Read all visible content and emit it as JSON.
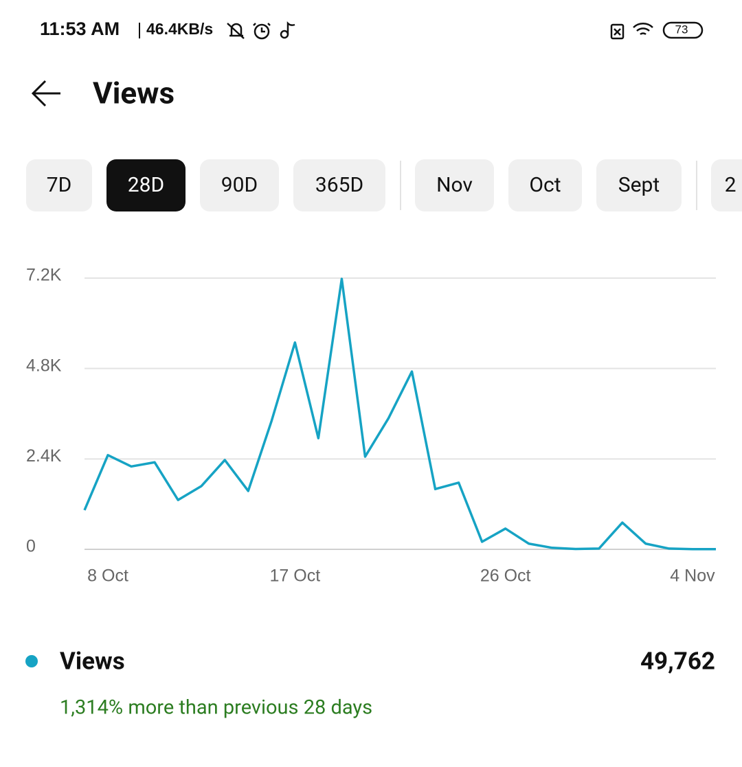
{
  "status_bar": {
    "time": "11:53 AM",
    "speed": "46.4KB/s",
    "battery": "73"
  },
  "header": {
    "title": "Views"
  },
  "tabs": [
    {
      "label": "7D",
      "selected": false
    },
    {
      "label": "28D",
      "selected": true
    },
    {
      "label": "90D",
      "selected": false
    },
    {
      "label": "365D",
      "selected": false
    },
    {
      "label": "Nov",
      "selected": false
    },
    {
      "label": "Oct",
      "selected": false
    },
    {
      "label": "Sept",
      "selected": false
    },
    {
      "label": "2",
      "selected": false
    }
  ],
  "chart_data": {
    "type": "line",
    "categories": [
      null,
      "8 Oct",
      null,
      null,
      null,
      null,
      null,
      null,
      null,
      "17 Oct",
      null,
      null,
      null,
      null,
      null,
      null,
      null,
      null,
      "26 Oct",
      null,
      null,
      null,
      null,
      null,
      null,
      null,
      "4 Nov",
      null
    ],
    "series": [
      {
        "name": "Views",
        "color": "#16a3c4",
        "values": [
          1040,
          2500,
          2200,
          2310,
          1310,
          1680,
          2370,
          1550,
          3410,
          5490,
          2950,
          7180,
          2460,
          3480,
          4720,
          1600,
          1770,
          200,
          550,
          150,
          40,
          10,
          20,
          710,
          150,
          20,
          5,
          5
        ]
      }
    ],
    "ylim": [
      0,
      7200
    ],
    "yticks": [
      0,
      {
        "value": 2400,
        "label": "2.4K"
      },
      {
        "value": 4800,
        "label": "4.8K"
      },
      {
        "value": 7200,
        "label": "7.2K"
      }
    ],
    "grid": true
  },
  "summary": {
    "total": "49,762",
    "change": "1,314% more than previous 28 days"
  }
}
